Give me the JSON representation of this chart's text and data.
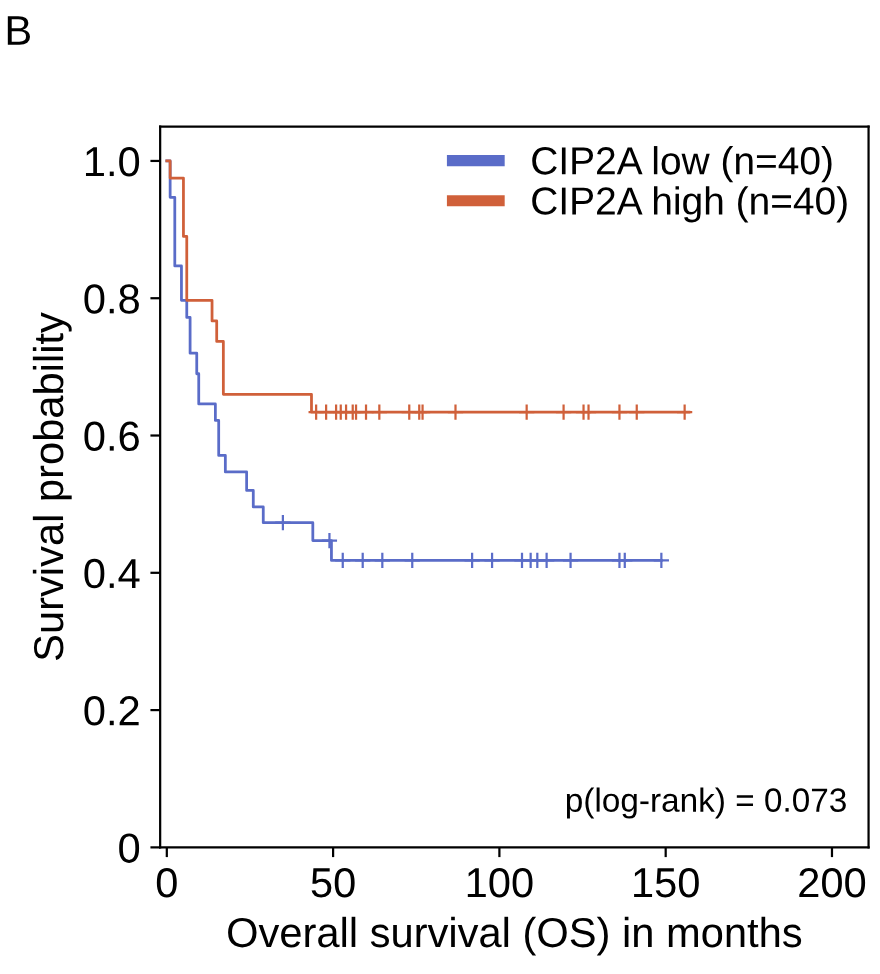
{
  "chart_data": {
    "type": "step",
    "title": "B",
    "xlabel": "Overall survival (OS) in months",
    "ylabel": "Survival probability",
    "xlim": [
      -2,
      211
    ],
    "ylim": [
      0,
      1.05
    ],
    "xticks": [
      0,
      50,
      100,
      150,
      200
    ],
    "yticks": [
      0,
      0.2,
      0.4,
      0.6,
      0.8,
      {
        "value": 1.0,
        "label": "1.0"
      }
    ],
    "grid": false,
    "legend": "top right",
    "line_style": "solid",
    "annotations": [
      "p(log-rank) = 0.073"
    ],
    "series": [
      {
        "name": "CIP2A low (n=40)",
        "color": "#5a6cc8",
        "x": [
          0,
          1,
          2.4,
          4.4,
          6,
          7,
          9,
          9.6,
          14.6,
          15.6,
          17.6,
          24,
          26,
          29,
          43.9,
          49.5,
          148.7
        ],
        "values": [
          1.0,
          0.947,
          0.847,
          0.797,
          0.772,
          0.72,
          0.69,
          0.646,
          0.622,
          0.571,
          0.547,
          0.52,
          0.496,
          0.473,
          0.447,
          0.418,
          0.418
        ]
      },
      {
        "name": "CIP2A high (n=40)",
        "color": "#d0603a",
        "x": [
          0,
          1,
          5,
          6,
          13.6,
          15,
          17,
          43.5,
          157
        ],
        "values": [
          1.0,
          0.975,
          0.89,
          0.797,
          0.767,
          0.737,
          0.66,
          0.634,
          0.634
        ]
      },
      {
        "color": "#5a6cc8",
        "type": "scatter",
        "marker": "cross",
        "x": [
          34.9,
          48.9,
          52.9,
          58.9,
          64.8,
          73.8,
          91.8,
          97.8,
          106.8,
          109.4,
          111.4,
          114.2,
          121.4,
          136.1,
          137.7,
          148.7
        ],
        "values": [
          0.473,
          0.447,
          0.418,
          0.418,
          0.418,
          0.418,
          0.418,
          0.418,
          0.418,
          0.418,
          0.418,
          0.418,
          0.418,
          0.418,
          0.418,
          0.418
        ]
      },
      {
        "color": "#d0603a",
        "type": "scatter",
        "marker": "cross",
        "x": [
          44.9,
          47.9,
          50.9,
          52.3,
          53.9,
          55.9,
          56.9,
          59.9,
          63.9,
          72.9,
          75.9,
          76.9,
          86.8,
          108.2,
          119.3,
          125.3,
          126.8,
          136.1,
          141.3,
          155.7
        ],
        "values": [
          0.634,
          0.634,
          0.634,
          0.634,
          0.634,
          0.634,
          0.634,
          0.634,
          0.634,
          0.634,
          0.634,
          0.634,
          0.634,
          0.634,
          0.634,
          0.634,
          0.634,
          0.634,
          0.634,
          0.634
        ]
      }
    ]
  }
}
